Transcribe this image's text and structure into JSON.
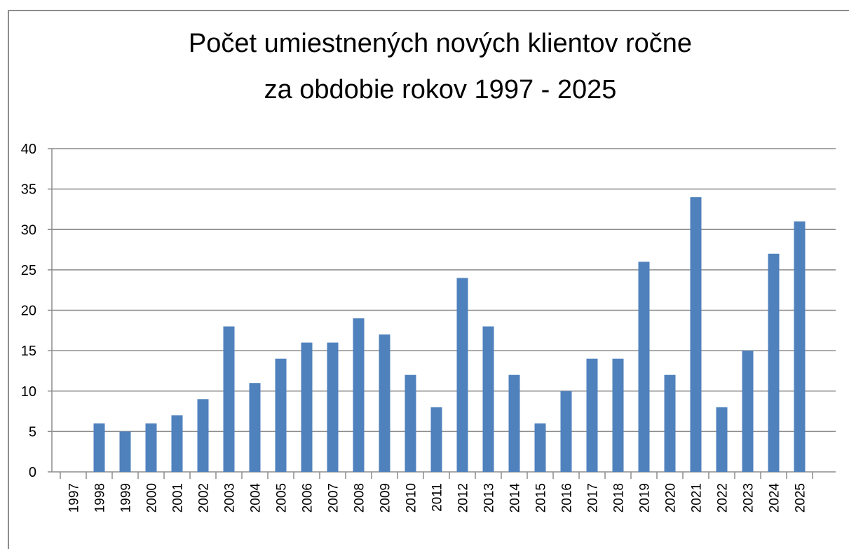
{
  "chart_data": {
    "type": "bar",
    "title": [
      "Počet umiestnených nových klientov ročne",
      "za obdobie rokov 1997 - 2025"
    ],
    "categories": [
      "1997",
      "1998",
      "1999",
      "2000",
      "2001",
      "2002",
      "2003",
      "2004",
      "2005",
      "2006",
      "2007",
      "2008",
      "2009",
      "2010",
      "2011",
      "2012",
      "2013",
      "2014",
      "2015",
      "2016",
      "2017",
      "2018",
      "2019",
      "2020",
      "2021",
      "2022",
      "2023",
      "2024",
      "2025"
    ],
    "values": [
      0,
      6,
      5,
      6,
      7,
      9,
      18,
      11,
      14,
      16,
      16,
      19,
      17,
      12,
      8,
      24,
      18,
      12,
      6,
      10,
      14,
      14,
      26,
      12,
      34,
      8,
      15,
      27,
      31
    ],
    "color": "#4f81bd",
    "ylim": [
      0,
      40
    ],
    "yticks": [
      0,
      5,
      10,
      15,
      20,
      25,
      30,
      35,
      40
    ],
    "grid": true
  }
}
